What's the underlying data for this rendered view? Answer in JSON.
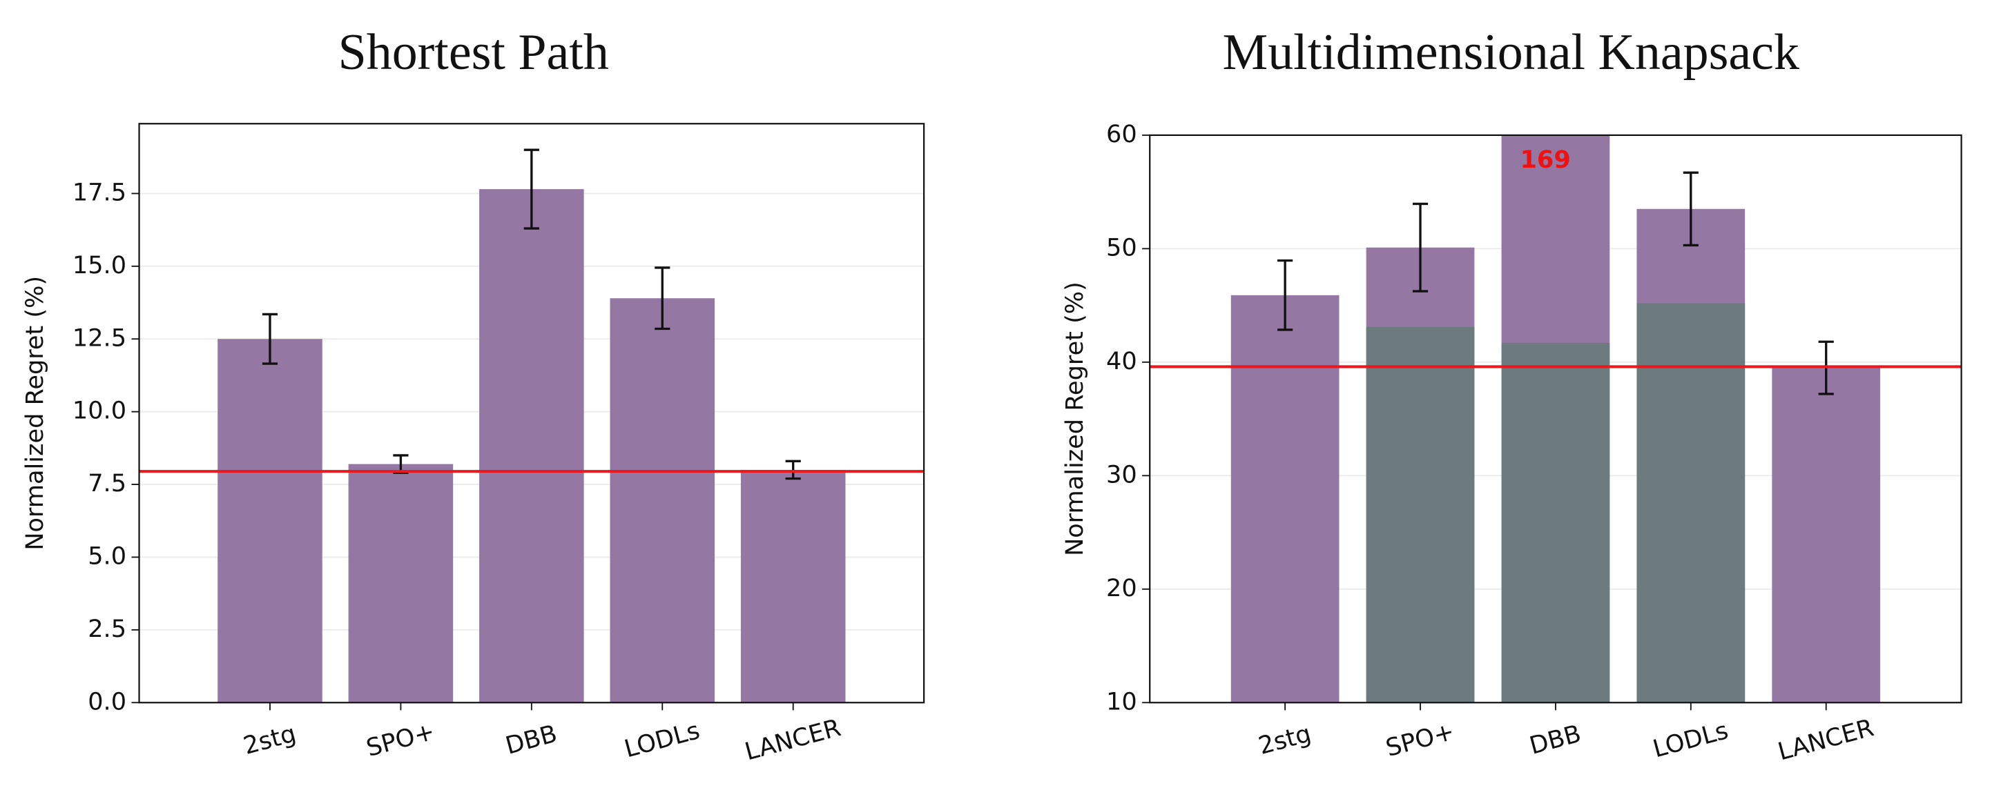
{
  "chart_data": [
    {
      "type": "bar",
      "title": "Shortest Path",
      "y_label": "Normalized Regret (%)",
      "categories": [
        "2stg",
        "SPO+",
        "DBB",
        "LODLs",
        "LANCER"
      ],
      "series": [
        {
          "color": "#9577a3",
          "values": [
            12.5,
            8.2,
            17.65,
            13.9,
            8.0
          ],
          "errors": [
            0.85,
            0.3,
            1.35,
            1.05,
            0.3
          ]
        }
      ],
      "hline": {
        "value": 7.95,
        "color": "#e8191f"
      },
      "xlim": [
        -1,
        5
      ],
      "ylim": [
        0,
        19.9
      ],
      "yticks": [
        {
          "value": 0,
          "label": "0.0"
        },
        {
          "value": 2.5,
          "label": "2.5"
        },
        {
          "value": 5,
          "label": "5.0"
        },
        {
          "value": 7.5,
          "label": "7.5"
        },
        {
          "value": 10,
          "label": "10.0"
        },
        {
          "value": 12.5,
          "label": "12.5"
        },
        {
          "value": 15,
          "label": "15.0"
        },
        {
          "value": 17.5,
          "label": "17.5"
        }
      ],
      "grid": true
    },
    {
      "type": "bar",
      "title": "Multidimensional Knapsack",
      "y_label": "Normalized Regret (%)",
      "categories": [
        "2stg",
        "SPO+",
        "DBB",
        "LODLs",
        "LANCER"
      ],
      "series": [
        {
          "color": "#9577a3",
          "values": [
            45.9,
            50.1,
            169,
            53.5,
            39.5
          ],
          "errors": [
            3.05,
            3.85,
            null,
            3.2,
            2.3
          ],
          "value_labels": [
            null,
            null,
            "169",
            null,
            null
          ],
          "label_color": "#ee1111"
        },
        {
          "color": "#6b7b7e",
          "values": [
            null,
            43.1,
            41.7,
            45.2,
            null
          ]
        }
      ],
      "hline": {
        "value": 39.6,
        "color": "#e8191f"
      },
      "xlim": [
        -1,
        5
      ],
      "ylim": [
        10,
        60
      ],
      "yticks": [
        10,
        20,
        30,
        40,
        50,
        60
      ],
      "grid": true
    }
  ]
}
